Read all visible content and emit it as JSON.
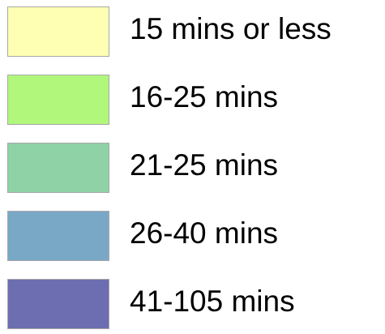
{
  "legend": {
    "items": [
      {
        "label": "15 mins or less",
        "color": "#ffffb3"
      },
      {
        "label": "16-25 mins",
        "color": "#b0f77b"
      },
      {
        "label": "21-25 mins",
        "color": "#8ed2a6"
      },
      {
        "label": "26-40 mins",
        "color": "#79a8c7"
      },
      {
        "label": "41-105 mins",
        "color": "#6c6eb1"
      }
    ]
  }
}
